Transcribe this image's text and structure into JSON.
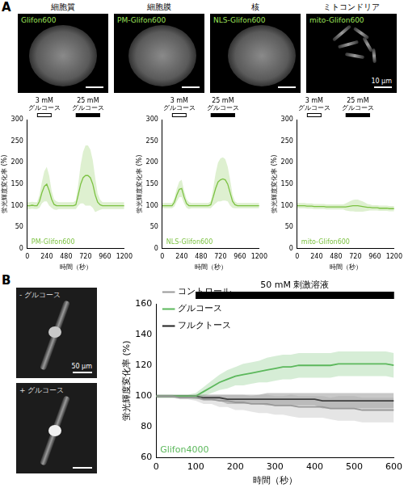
{
  "panel_labels": [
    "A",
    "B"
  ],
  "cell_images": [
    {
      "title": "細胞質",
      "label": "Glifon600"
    },
    {
      "title": "細胞膜",
      "label": "PM-Glifon600"
    },
    {
      "title": "核",
      "label": "NLS-Glifon600"
    },
    {
      "title": "ミトコンドリア",
      "label": "mito-Glifon600",
      "scale_bar": "10 µm"
    }
  ],
  "neuron_images": [
    {
      "label": "- グルコース",
      "scale_bar": "50 µm"
    },
    {
      "label": "+ グルコース"
    }
  ],
  "chart_data": [
    {
      "type": "line",
      "annotation": "PM-Glifon600",
      "x_label": "時間（秒）",
      "y_label": "蛍光輝度変化率 (%)",
      "x": [
        0,
        30,
        60,
        90,
        120,
        150,
        180,
        210,
        240,
        270,
        300,
        330,
        360,
        390,
        420,
        450,
        480,
        510,
        540,
        570,
        600,
        630,
        660,
        690,
        720,
        750,
        780,
        810,
        840,
        870,
        900,
        930,
        960,
        990,
        1020,
        1050,
        1080,
        1110,
        1140,
        1170,
        1200
      ],
      "xlim": [
        0,
        1200
      ],
      "xticks": [
        0,
        240,
        480,
        720,
        960,
        1200
      ],
      "ylim": [
        0,
        300
      ],
      "yticks": [
        0,
        50,
        100,
        150,
        200,
        250,
        300
      ],
      "grid": false,
      "stimuli": [
        {
          "label": [
            "3 mM",
            "グルコース"
          ],
          "start": 120,
          "end": 300,
          "color": "#ffffff"
        },
        {
          "label": [
            "25 mM",
            "グルコース"
          ],
          "start": 600,
          "end": 900,
          "color": "#000000"
        }
      ],
      "series": [
        {
          "color": "#7cc242",
          "values": [
            100,
            100,
            101,
            100,
            100,
            110,
            130,
            145,
            150,
            135,
            115,
            103,
            100,
            100,
            100,
            100,
            100,
            100,
            100,
            100,
            102,
            125,
            150,
            165,
            170,
            170,
            165,
            150,
            125,
            108,
            102,
            100,
            100,
            100,
            100,
            100,
            100,
            100,
            100,
            100,
            100
          ],
          "error": [
            8,
            8,
            8,
            8,
            8,
            15,
            25,
            35,
            40,
            35,
            20,
            12,
            10,
            8,
            8,
            8,
            8,
            8,
            8,
            8,
            10,
            25,
            45,
            60,
            70,
            70,
            65,
            55,
            40,
            20,
            12,
            8,
            8,
            8,
            8,
            8,
            8,
            8,
            8,
            8,
            8
          ]
        }
      ]
    },
    {
      "type": "line",
      "annotation": "NLS-Glifon600",
      "x_label": "時間（秒）",
      "y_label": "蛍光輝度変化率 (%)",
      "x": [
        0,
        30,
        60,
        90,
        120,
        150,
        180,
        210,
        240,
        270,
        300,
        330,
        360,
        390,
        420,
        450,
        480,
        510,
        540,
        570,
        600,
        630,
        660,
        690,
        720,
        750,
        780,
        810,
        840,
        870,
        900,
        930,
        960,
        990,
        1020,
        1050,
        1080,
        1110,
        1140,
        1170,
        1200
      ],
      "xlim": [
        0,
        1200
      ],
      "xticks": [
        0,
        240,
        480,
        720,
        960,
        1200
      ],
      "ylim": [
        0,
        300
      ],
      "yticks": [
        0,
        50,
        100,
        150,
        200,
        250,
        300
      ],
      "grid": false,
      "stimuli": [
        {
          "label": [
            "3 mM",
            "グルコース"
          ],
          "start": 120,
          "end": 300,
          "color": "#ffffff"
        },
        {
          "label": [
            "25 mM",
            "グルコース"
          ],
          "start": 600,
          "end": 900,
          "color": "#000000"
        }
      ],
      "series": [
        {
          "color": "#7cc242",
          "values": [
            100,
            100,
            100,
            100,
            100,
            108,
            125,
            138,
            140,
            120,
            105,
            100,
            100,
            100,
            100,
            100,
            100,
            100,
            100,
            100,
            102,
            120,
            140,
            155,
            160,
            162,
            160,
            150,
            130,
            110,
            102,
            100,
            100,
            100,
            100,
            100,
            100,
            100,
            100,
            100,
            100
          ],
          "error": [
            6,
            6,
            6,
            6,
            6,
            10,
            15,
            18,
            20,
            15,
            10,
            8,
            6,
            6,
            6,
            6,
            6,
            6,
            6,
            6,
            8,
            20,
            35,
            45,
            50,
            50,
            48,
            40,
            30,
            15,
            8,
            6,
            6,
            6,
            6,
            6,
            6,
            6,
            6,
            6,
            6
          ]
        }
      ]
    },
    {
      "type": "line",
      "annotation": "mito-Glifon600",
      "x_label": "時間（秒）",
      "y_label": "蛍光輝度変化率 (%)",
      "x": [
        0,
        30,
        60,
        90,
        120,
        150,
        180,
        210,
        240,
        270,
        300,
        330,
        360,
        390,
        420,
        450,
        480,
        510,
        540,
        570,
        600,
        630,
        660,
        690,
        720,
        750,
        780,
        810,
        840,
        870,
        900,
        930,
        960,
        990,
        1020,
        1050,
        1080,
        1110,
        1140,
        1170,
        1200
      ],
      "xlim": [
        0,
        1200
      ],
      "xticks": [
        0,
        240,
        480,
        720,
        960,
        1200
      ],
      "ylim": [
        0,
        300
      ],
      "yticks": [
        0,
        50,
        100,
        150,
        200,
        250,
        300
      ],
      "grid": false,
      "stimuli": [
        {
          "label": [
            "3 mM",
            "グルコース"
          ],
          "start": 120,
          "end": 300,
          "color": "#ffffff"
        },
        {
          "label": [
            "25 mM",
            "グルコース"
          ],
          "start": 600,
          "end": 900,
          "color": "#000000"
        }
      ],
      "series": [
        {
          "color": "#7cc242",
          "values": [
            100,
            100,
            100,
            100,
            99,
            99,
            99,
            98,
            98,
            98,
            98,
            98,
            97,
            97,
            97,
            97,
            97,
            97,
            97,
            97,
            97,
            98,
            99,
            100,
            100,
            100,
            99,
            98,
            97,
            96,
            96,
            95,
            95,
            95,
            94,
            94,
            94,
            94,
            93,
            93,
            93
          ],
          "error": [
            6,
            6,
            6,
            6,
            6,
            6,
            6,
            6,
            6,
            6,
            6,
            6,
            6,
            6,
            6,
            6,
            6,
            6,
            6,
            6,
            8,
            10,
            12,
            13,
            14,
            14,
            13,
            12,
            10,
            8,
            7,
            6,
            6,
            6,
            6,
            6,
            6,
            6,
            6,
            6,
            6
          ]
        }
      ]
    },
    {
      "type": "line",
      "annotation": "Glifon4000",
      "x_label": "時間（秒）",
      "y_label": "蛍光輝度変化率 (%)",
      "x": [
        0,
        20,
        40,
        60,
        80,
        100,
        120,
        140,
        160,
        180,
        200,
        220,
        240,
        260,
        280,
        300,
        320,
        340,
        360,
        380,
        400,
        420,
        440,
        460,
        480,
        500,
        520,
        540,
        560,
        580,
        600
      ],
      "xlim": [
        0,
        600
      ],
      "xticks": [
        0,
        100,
        200,
        300,
        400,
        500,
        600
      ],
      "ylim": [
        60,
        160
      ],
      "yticks": [
        60,
        80,
        100,
        120,
        140,
        160
      ],
      "grid": false,
      "legend": "top-left",
      "stimuli": [
        {
          "label": [
            "50 mM 刺激溶液"
          ],
          "start": 100,
          "end": 600,
          "color": "#000000"
        }
      ],
      "series": [
        {
          "name": "コントロール",
          "color": "#999999",
          "values": [
            100,
            100,
            100,
            99,
            99,
            99,
            98,
            98,
            97,
            97,
            96,
            96,
            95,
            95,
            95,
            94,
            94,
            94,
            93,
            93,
            93,
            93,
            92,
            92,
            92,
            92,
            91,
            91,
            91,
            91,
            91
          ],
          "error": [
            1,
            1,
            1,
            1,
            1,
            2,
            3,
            3,
            4,
            4,
            5,
            5,
            5,
            6,
            6,
            6,
            6,
            7,
            7,
            7,
            7,
            7,
            7,
            8,
            8,
            8,
            8,
            8,
            8,
            8,
            8
          ]
        },
        {
          "name": "グルコース",
          "color": "#5cb85c",
          "values": [
            100,
            100,
            100,
            100,
            100,
            100,
            103,
            106,
            109,
            111,
            113,
            114,
            115,
            116,
            117,
            118,
            119,
            119,
            120,
            120,
            120,
            120,
            120,
            121,
            121,
            121,
            121,
            121,
            121,
            121,
            120
          ],
          "error": [
            1,
            1,
            1,
            1,
            1,
            2,
            3,
            4,
            5,
            6,
            6,
            7,
            7,
            7,
            8,
            8,
            8,
            8,
            8,
            8,
            8,
            8,
            8,
            8,
            8,
            8,
            8,
            8,
            8,
            8,
            8
          ]
        },
        {
          "name": "フルクトース",
          "color": "#222222",
          "values": [
            100,
            100,
            100,
            100,
            100,
            100,
            99,
            99,
            99,
            98,
            98,
            98,
            98,
            98,
            98,
            98,
            98,
            98,
            98,
            98,
            98,
            97,
            97,
            97,
            97,
            97,
            97,
            97,
            97,
            97,
            97
          ],
          "error": [
            1,
            1,
            1,
            1,
            1,
            1,
            2,
            2,
            2,
            3,
            3,
            3,
            3,
            3,
            4,
            4,
            4,
            4,
            4,
            4,
            4,
            5,
            5,
            5,
            5,
            5,
            5,
            5,
            5,
            5,
            5
          ]
        }
      ]
    }
  ]
}
